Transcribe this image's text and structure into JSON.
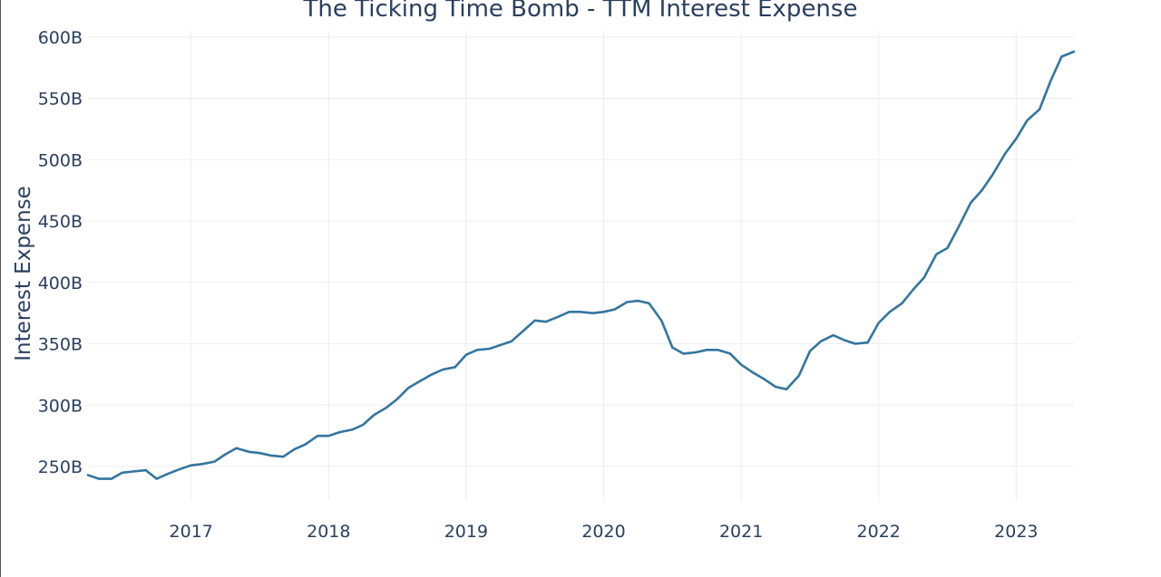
{
  "chart_data": {
    "type": "line",
    "title": "The Ticking Time Bomb - TTM Interest Expense",
    "xlabel": "",
    "ylabel": "Interest Expense",
    "x_range": [
      2016.25,
      2023.42
    ],
    "ylim": [
      222,
      605
    ],
    "grid": true,
    "y_ticks": [
      250,
      300,
      350,
      400,
      450,
      500,
      550,
      600
    ],
    "y_tick_labels": [
      "250B",
      "300B",
      "350B",
      "400B",
      "450B",
      "500B",
      "550B",
      "600B"
    ],
    "x_ticks": [
      2017,
      2018,
      2019,
      2020,
      2021,
      2022,
      2023
    ],
    "x_tick_labels": [
      "2017",
      "2018",
      "2019",
      "2020",
      "2021",
      "2022",
      "2023"
    ],
    "series": [
      {
        "name": "TTM Interest Expense",
        "color": "#33759e",
        "x": [
          2016.25,
          2016.33,
          2016.42,
          2016.5,
          2016.58,
          2016.67,
          2016.75,
          2016.83,
          2016.92,
          2017.0,
          2017.08,
          2017.17,
          2017.25,
          2017.33,
          2017.42,
          2017.5,
          2017.58,
          2017.67,
          2017.75,
          2017.83,
          2017.92,
          2018.0,
          2018.08,
          2018.17,
          2018.25,
          2018.33,
          2018.42,
          2018.5,
          2018.58,
          2018.67,
          2018.75,
          2018.83,
          2018.92,
          2019.0,
          2019.08,
          2019.17,
          2019.25,
          2019.33,
          2019.42,
          2019.5,
          2019.58,
          2019.67,
          2019.75,
          2019.83,
          2019.92,
          2020.0,
          2020.08,
          2020.17,
          2020.25,
          2020.33,
          2020.42,
          2020.5,
          2020.58,
          2020.67,
          2020.75,
          2020.83,
          2020.92,
          2021.0,
          2021.08,
          2021.17,
          2021.25,
          2021.33,
          2021.42,
          2021.5,
          2021.58,
          2021.67,
          2021.75,
          2021.83,
          2021.92,
          2022.0,
          2022.08,
          2022.17,
          2022.25,
          2022.33,
          2022.42,
          2022.5,
          2022.58,
          2022.67,
          2022.75,
          2022.83,
          2022.92,
          2023.0,
          2023.08,
          2023.17,
          2023.25,
          2023.33,
          2023.42
        ],
        "y": [
          243,
          240,
          240,
          245,
          246,
          247,
          240,
          244,
          248,
          251,
          252,
          254,
          260,
          265,
          262,
          261,
          259,
          258,
          264,
          268,
          275,
          275,
          278,
          280,
          284,
          292,
          298,
          305,
          314,
          320,
          325,
          329,
          331,
          341,
          345,
          346,
          349,
          352,
          361,
          369,
          368,
          372,
          376,
          376,
          375,
          376,
          378,
          384,
          385,
          383,
          369,
          347,
          342,
          343,
          345,
          345,
          342,
          333,
          327,
          321,
          315,
          313,
          324,
          344,
          352,
          357,
          353,
          350,
          351,
          367,
          376,
          383,
          394,
          404,
          423,
          428,
          445,
          465,
          475,
          488,
          505,
          517,
          532,
          541,
          564,
          584,
          588
        ]
      }
    ]
  }
}
